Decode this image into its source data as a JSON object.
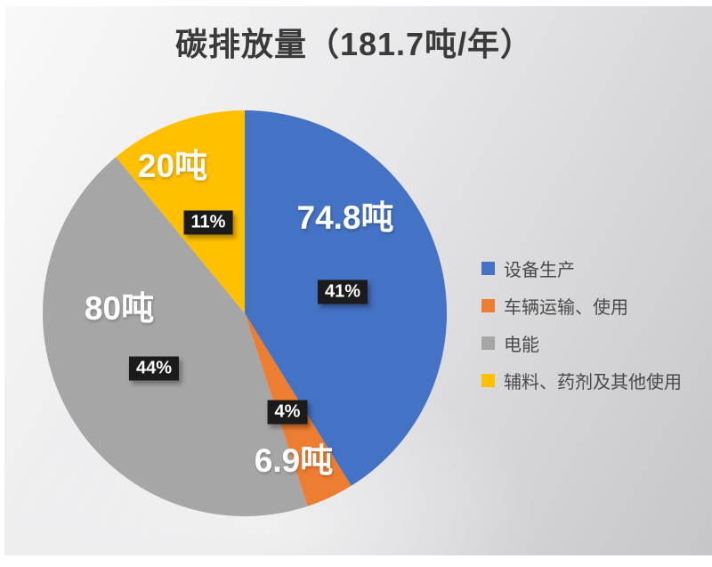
{
  "chart_data": {
    "type": "pie",
    "title": "碳排放量（181.7吨/年）",
    "total": 181.7,
    "unit": "吨/年",
    "start_angle_deg": -90,
    "direction": "clockwise",
    "legend_position": "right",
    "title_color": "#3a3a3a",
    "legend_text_color": "#4a4a4a",
    "value_label_color": "#ffffff",
    "badge_bg": "#1b1b1b",
    "badge_text_color": "#ffffff",
    "slices": [
      {
        "label": "设备生产",
        "value": 74.8,
        "value_label": "74.8吨",
        "percent": 41,
        "percent_label": "41%",
        "color": "#4472C4"
      },
      {
        "label": "车辆运输、使用",
        "value": 6.9,
        "value_label": "6.9吨",
        "percent": 4,
        "percent_label": "4%",
        "color": "#ED7D31"
      },
      {
        "label": "电能",
        "value": 80,
        "value_label": "80吨",
        "percent": 44,
        "percent_label": "44%",
        "color": "#A6A6A6"
      },
      {
        "label": "辅料、药剂及其他使用",
        "value": 20,
        "value_label": "20吨",
        "percent": 11,
        "percent_label": "11%",
        "color": "#FFC000"
      }
    ]
  }
}
